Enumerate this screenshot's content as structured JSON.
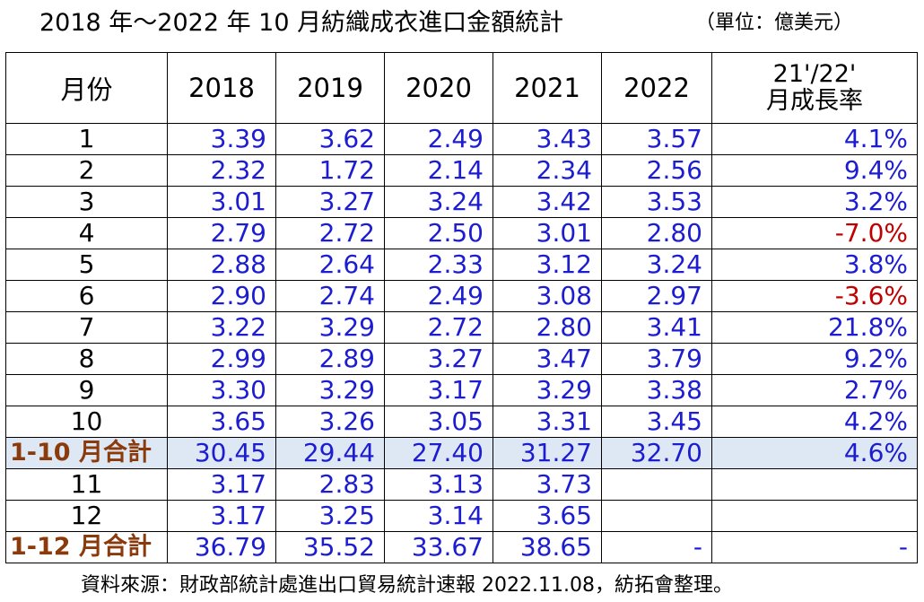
{
  "title": "2018 年～2022 年 10 月紡織成衣進口金額統計",
  "unit": "（單位：億美元）",
  "table": {
    "headers": [
      "月份",
      "2018",
      "2019",
      "2020",
      "2021",
      "2022"
    ],
    "growth_header_line1": "21'/22'",
    "growth_header_line2": "月成長率",
    "rows": [
      [
        "1",
        "3.39",
        "3.62",
        "2.49",
        "3.43",
        "3.57",
        "4.1%"
      ],
      [
        "2",
        "2.32",
        "1.72",
        "2.14",
        "2.34",
        "2.56",
        "9.4%"
      ],
      [
        "3",
        "3.01",
        "3.27",
        "3.24",
        "3.42",
        "3.53",
        "3.2%"
      ],
      [
        "4",
        "2.79",
        "2.72",
        "2.50",
        "3.01",
        "2.80",
        "-7.0%"
      ],
      [
        "5",
        "2.88",
        "2.64",
        "2.33",
        "3.12",
        "3.24",
        "3.8%"
      ],
      [
        "6",
        "2.90",
        "2.74",
        "2.49",
        "3.08",
        "2.97",
        "-3.6%"
      ],
      [
        "7",
        "3.22",
        "3.29",
        "2.72",
        "2.80",
        "3.41",
        "21.8%"
      ],
      [
        "8",
        "2.99",
        "2.89",
        "3.27",
        "3.47",
        "3.79",
        "9.2%"
      ],
      [
        "9",
        "3.30",
        "3.29",
        "3.17",
        "3.29",
        "3.38",
        "2.7%"
      ],
      [
        "10",
        "3.65",
        "3.26",
        "3.05",
        "3.31",
        "3.45",
        "4.2%"
      ],
      [
        "1-10 月合計",
        "30.45",
        "29.44",
        "27.40",
        "31.27",
        "32.70",
        "4.6%"
      ],
      [
        "11",
        "3.17",
        "2.83",
        "3.13",
        "3.73",
        "",
        ""
      ],
      [
        "12",
        "3.17",
        "3.25",
        "3.14",
        "3.65",
        "",
        ""
      ],
      [
        "1-12 月合計",
        "36.79",
        "35.52",
        "33.67",
        "38.65",
        "-",
        "-"
      ]
    ],
    "colors": {
      "value": "#1c1cd0",
      "negative": "#c00000",
      "subtotal_label": "#8b3a0c",
      "highlight_bg": "#dde8f4"
    }
  },
  "source": "資料來源：財政部統計處進出口貿易統計速報 2022.11.08，紡拓會整理。"
}
